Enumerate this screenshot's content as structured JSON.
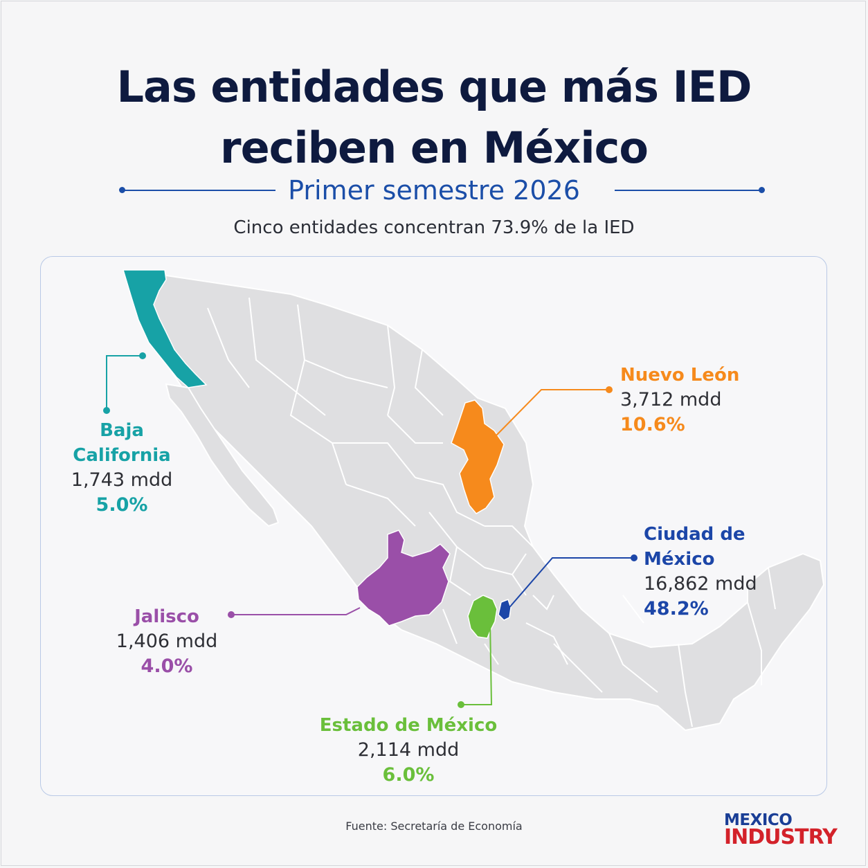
{
  "title_line1": "Las entidades que más IED",
  "title_line2": "reciben en México",
  "subtitle": "Primer semestre 2026",
  "kicker": "Cinco entidades concentran 73.9% de la IED",
  "source": "Fuente: Secretaría de Economía",
  "logo": {
    "line1": "MEXICO",
    "line2": "INDUSTRY"
  },
  "colors": {
    "navy": "#0e1a3f",
    "accent_blue": "#1b4ea8",
    "land": "#dfdfe1",
    "border": "#ffffff",
    "baja_california": "#17a2a6",
    "nuevo_leon": "#f68a1c",
    "ciudad_de_mexico": "#1c46a8",
    "jalisco": "#9a4fa8",
    "estado_de_mexico": "#6abf3b"
  },
  "entities": [
    {
      "key": "baja_california",
      "name": "Baja California",
      "value": "1,743 mdd",
      "share": "5.0%"
    },
    {
      "key": "nuevo_leon",
      "name": "Nuevo León",
      "value": "3,712 mdd",
      "share": "10.6%"
    },
    {
      "key": "ciudad_de_mexico",
      "name": "Ciudad de México",
      "value": "16,862 mdd",
      "share": "48.2%"
    },
    {
      "key": "jalisco",
      "name": "Jalisco",
      "value": "1,406 mdd",
      "share": "4.0%"
    },
    {
      "key": "estado_de_mexico",
      "name": "Estado de México",
      "value": "2,114 mdd",
      "share": "6.0%"
    }
  ]
}
